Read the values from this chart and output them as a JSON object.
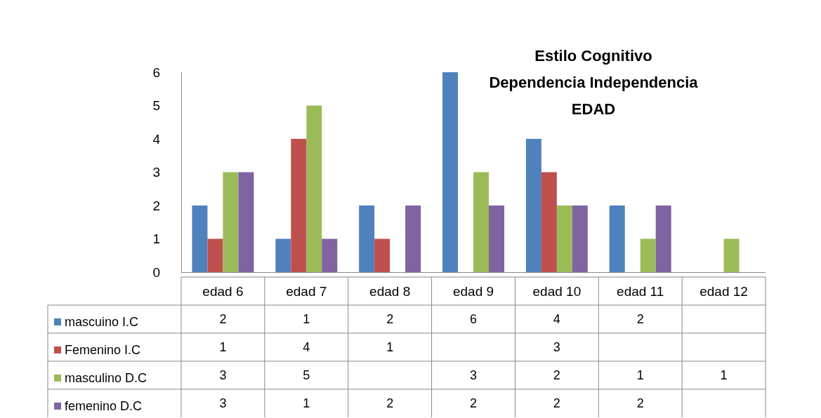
{
  "chart_data": {
    "type": "bar",
    "title": "Estilo Cognitivo\nDependencia Independencia\nEDAD",
    "categories": [
      "edad 6",
      "edad 7",
      "edad 8",
      "edad 9",
      "edad 10",
      "edad 11",
      "edad 12"
    ],
    "series": [
      {
        "name": "mascuino I.C",
        "color": "#4f81bd",
        "values": [
          2,
          1,
          2,
          6,
          4,
          2,
          null
        ]
      },
      {
        "name": "Femenino I.C",
        "color": "#c0504d",
        "values": [
          1,
          4,
          1,
          null,
          3,
          null,
          null
        ]
      },
      {
        "name": "masculino D.C",
        "color": "#9bbb59",
        "values": [
          3,
          5,
          null,
          3,
          2,
          1,
          1
        ]
      },
      {
        "name": "femenino D.C",
        "color": "#8064a2",
        "values": [
          3,
          1,
          2,
          2,
          2,
          2,
          null
        ]
      }
    ],
    "ylim": [
      0,
      6
    ],
    "yticks": [
      0,
      1,
      2,
      3,
      4,
      5,
      6
    ],
    "grid": false,
    "legend": "bottom",
    "data_labels": true
  }
}
